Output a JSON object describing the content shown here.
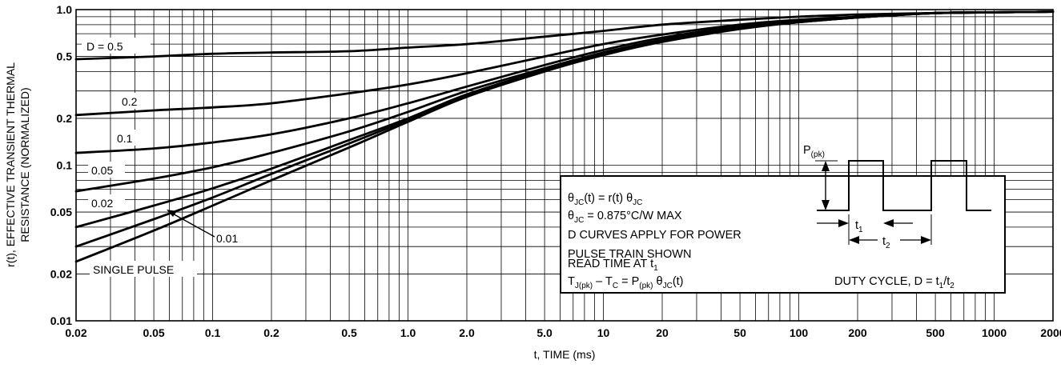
{
  "chart_data": {
    "type": "line",
    "xlabel": "t, TIME (ms)",
    "ylabel": "r(t), EFFECTIVE TRANSIENT THERMAL RESISTANCE (NORMALIZED)",
    "ylabel_line1": "r(t), EFFECTIVE TRANSIENT THERMAL",
    "ylabel_line2": "RESISTANCE (NORMALIZED)",
    "x_scale": "log",
    "y_scale": "log",
    "xlim": [
      0.02,
      2000
    ],
    "ylim": [
      0.01,
      1.0
    ],
    "grid": true,
    "x_ticks": [
      0.02,
      0.05,
      0.1,
      0.2,
      0.5,
      1.0,
      2.0,
      5.0,
      10,
      20,
      50,
      100,
      200,
      500,
      1000,
      2000
    ],
    "x_tick_labels": [
      "0.02",
      "0.05",
      "0.1",
      "0.2",
      "0.5",
      "1.0",
      "2.0",
      "5.0",
      "10",
      "20",
      "50",
      "100",
      "200",
      "500",
      "1000",
      "2000"
    ],
    "y_ticks": [
      0.01,
      0.02,
      0.05,
      0.1,
      0.2,
      0.5,
      1.0
    ],
    "y_tick_labels": [
      "0.01",
      "0.02",
      "0.05",
      "0.1",
      "0.2",
      "0.5",
      "1.0"
    ],
    "series": [
      {
        "name": "D = 0.5",
        "x": [
          0.02,
          0.05,
          0.1,
          0.2,
          0.5,
          1,
          2,
          5,
          10,
          20,
          50,
          100,
          200,
          500,
          1000,
          2000
        ],
        "y": [
          0.48,
          0.5,
          0.52,
          0.53,
          0.54,
          0.57,
          0.6,
          0.67,
          0.73,
          0.8,
          0.86,
          0.9,
          0.93,
          0.95,
          0.96,
          0.97
        ]
      },
      {
        "name": "0.2",
        "x": [
          0.02,
          0.05,
          0.1,
          0.2,
          0.5,
          1,
          2,
          5,
          10,
          20,
          50,
          100,
          200,
          500,
          1000,
          2000
        ],
        "y": [
          0.21,
          0.225,
          0.235,
          0.25,
          0.29,
          0.33,
          0.39,
          0.5,
          0.6,
          0.69,
          0.8,
          0.86,
          0.9,
          0.95,
          0.96,
          0.97
        ]
      },
      {
        "name": "0.1",
        "x": [
          0.02,
          0.05,
          0.1,
          0.2,
          0.5,
          1,
          2,
          5,
          10,
          20,
          50,
          100,
          200,
          500,
          1000,
          2000
        ],
        "y": [
          0.12,
          0.128,
          0.14,
          0.158,
          0.2,
          0.25,
          0.32,
          0.44,
          0.55,
          0.66,
          0.78,
          0.85,
          0.9,
          0.95,
          0.96,
          0.97
        ]
      },
      {
        "name": "0.05",
        "x": [
          0.02,
          0.05,
          0.1,
          0.2,
          0.5,
          1,
          2,
          5,
          10,
          20,
          50,
          100,
          200,
          500,
          1000,
          2000
        ],
        "y": [
          0.068,
          0.082,
          0.097,
          0.12,
          0.165,
          0.22,
          0.3,
          0.42,
          0.53,
          0.64,
          0.77,
          0.84,
          0.89,
          0.95,
          0.96,
          0.97
        ]
      },
      {
        "name": "0.02",
        "x": [
          0.02,
          0.05,
          0.1,
          0.2,
          0.5,
          1,
          2,
          5,
          10,
          20,
          50,
          100,
          200,
          500,
          1000,
          2000
        ],
        "y": [
          0.04,
          0.055,
          0.071,
          0.095,
          0.145,
          0.2,
          0.285,
          0.41,
          0.52,
          0.63,
          0.76,
          0.83,
          0.89,
          0.95,
          0.96,
          0.97
        ]
      },
      {
        "name": "0.01",
        "x": [
          0.02,
          0.05,
          0.1,
          0.2,
          0.5,
          1,
          2,
          5,
          10,
          20,
          50,
          100,
          200,
          500,
          1000,
          2000
        ],
        "y": [
          0.03,
          0.045,
          0.062,
          0.088,
          0.138,
          0.195,
          0.28,
          0.405,
          0.515,
          0.625,
          0.76,
          0.83,
          0.89,
          0.95,
          0.96,
          0.97
        ]
      },
      {
        "name": "SINGLE PULSE",
        "x": [
          0.02,
          0.05,
          0.1,
          0.2,
          0.5,
          1,
          2,
          5,
          10,
          20,
          50,
          100,
          200,
          500,
          1000,
          2000
        ],
        "y": [
          0.024,
          0.038,
          0.055,
          0.08,
          0.13,
          0.19,
          0.275,
          0.4,
          0.51,
          0.62,
          0.75,
          0.83,
          0.89,
          0.95,
          0.96,
          0.97
        ]
      }
    ],
    "annotations": {
      "label_0_01": "0.01"
    },
    "info_box": {
      "line1_a": "θ",
      "line1_b": "JC",
      "line1_c": "(t) = r(t) θ",
      "line1_d": "JC",
      "line2_a": "θ",
      "line2_b": "JC",
      "line2_c": " = 0.875°C/W MAX",
      "line3": "D CURVES APPLY FOR POWER",
      "line4": "PULSE TRAIN SHOWN",
      "line5_a": "READ TIME AT t",
      "line5_b": "1",
      "line6_a": "T",
      "line6_b": "J(pk)",
      "line6_c": " – T",
      "line6_d": "C",
      "line6_e": " = P",
      "line6_f": "(pk)",
      "line6_g": " θ",
      "line6_h": "JC",
      "line6_i": "(t)",
      "pulse_label_a": "P",
      "pulse_label_b": "(pk)",
      "t1_a": "t",
      "t1_b": "1",
      "t2_a": "t",
      "t2_b": "2",
      "duty_a": "DUTY CYCLE, D = t",
      "duty_b": "1",
      "duty_c": "/t",
      "duty_d": "2"
    }
  }
}
